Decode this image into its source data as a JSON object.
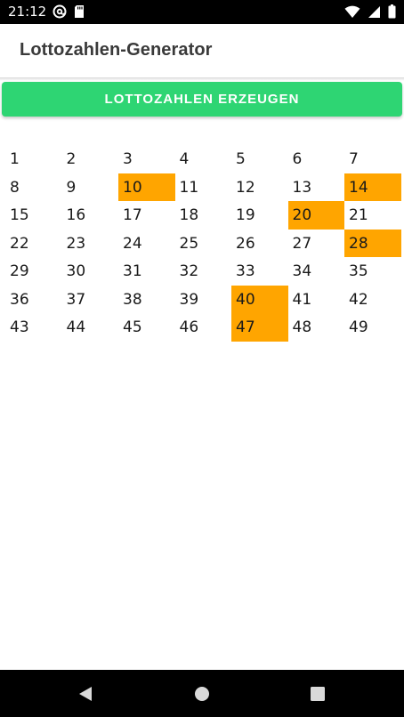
{
  "status_bar": {
    "time": "21:12",
    "left_icons": [
      "at-sign-icon",
      "sd-card-icon"
    ],
    "right_icons": [
      "wifi-icon",
      "signal-icon",
      "battery-icon"
    ]
  },
  "app_bar": {
    "title": "Lottozahlen-Generator"
  },
  "generate_button": {
    "label": "LOTTOZAHLEN ERZEUGEN",
    "color": "#2ed573"
  },
  "lotto_grid": {
    "numbers": [
      "1",
      "2",
      "3",
      "4",
      "5",
      "6",
      "7",
      "8",
      "9",
      "10",
      "11",
      "12",
      "13",
      "14",
      "15",
      "16",
      "17",
      "18",
      "19",
      "20",
      "21",
      "22",
      "23",
      "24",
      "25",
      "26",
      "27",
      "28",
      "29",
      "30",
      "31",
      "32",
      "33",
      "34",
      "35",
      "36",
      "37",
      "38",
      "39",
      "40",
      "41",
      "42",
      "43",
      "44",
      "45",
      "46",
      "47",
      "48",
      "49"
    ],
    "selected": [
      "10",
      "14",
      "20",
      "28",
      "40",
      "47"
    ],
    "highlight_color": "#ffa500"
  },
  "nav_bar": {
    "buttons": [
      "back-icon",
      "home-icon",
      "recents-icon"
    ]
  }
}
